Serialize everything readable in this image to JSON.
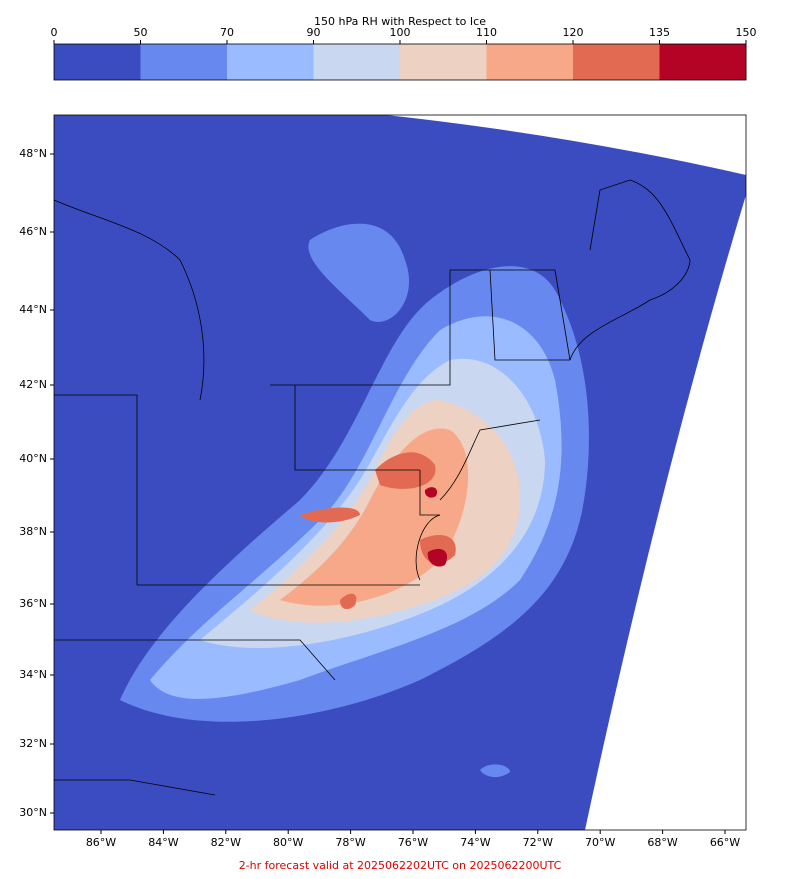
{
  "colorbar": {
    "title": "150 hPa RH with Respect to Ice",
    "ticks": [
      0,
      50,
      70,
      90,
      100,
      110,
      120,
      135,
      150
    ],
    "colors": [
      "#3b4cc0",
      "#6788ee",
      "#9abbff",
      "#c9d7f0",
      "#edd1c2",
      "#f7a889",
      "#e26952",
      "#b40426"
    ]
  },
  "map": {
    "lat_labels": [
      "48°N",
      "46°N",
      "44°N",
      "42°N",
      "40°N",
      "38°N",
      "36°N",
      "34°N",
      "32°N",
      "30°N"
    ],
    "lon_labels": [
      "86°W",
      "84°W",
      "82°W",
      "80°W",
      "78°W",
      "76°W",
      "74°W",
      "72°W",
      "70°W",
      "68°W",
      "66°W"
    ]
  },
  "footer": "2-hr forecast valid at 2025062202UTC on 2025062200UTC"
}
